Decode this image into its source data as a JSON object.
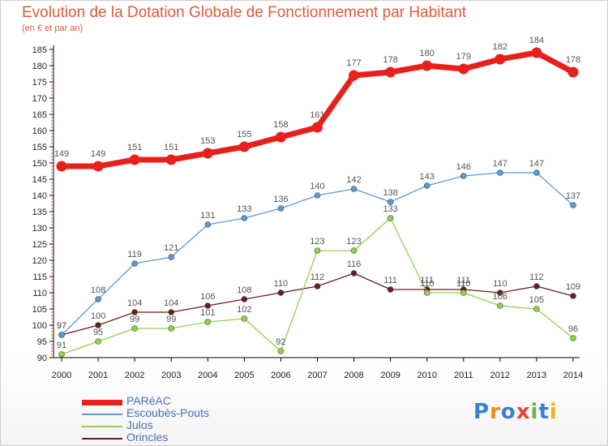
{
  "header": {
    "title": "Evolution de la Dotation Globale de Fonctionnement par Habitant",
    "subtitle": "(en € et par an)"
  },
  "logo": {
    "text": "Proxiti",
    "letters": [
      "P",
      "r",
      "o",
      "x",
      "i",
      "t",
      "i"
    ],
    "colors": [
      "#3a7fd0",
      "#f08a1c",
      "#3a7fd0",
      "#e8423a",
      "#6ab43e",
      "#3a7fd0",
      "#f0b41c"
    ]
  },
  "chart_data": {
    "type": "line",
    "title": "Evolution de la Dotation Globale de Fonctionnement par Habitant",
    "subtitle": "(en € et par an)",
    "x": [
      "2000",
      "2001",
      "2002",
      "2003",
      "2004",
      "2005",
      "2006",
      "2007",
      "2008",
      "2009",
      "2010",
      "2011",
      "2012",
      "2013",
      "2014"
    ],
    "ylim": [
      90,
      185
    ],
    "yticks": [
      90,
      95,
      100,
      105,
      110,
      115,
      120,
      125,
      130,
      135,
      140,
      145,
      150,
      155,
      160,
      165,
      170,
      175,
      180,
      185
    ],
    "grid": false,
    "legend": "bottom-left",
    "series": [
      {
        "name": "PARéAC",
        "color": "#e8201c",
        "values": [
          149,
          149,
          151,
          151,
          153,
          155,
          158,
          161,
          177,
          178,
          180,
          179,
          182,
          184,
          178
        ],
        "labels": [
          "149",
          "149",
          "151",
          "151",
          "153",
          "155",
          "158",
          "161",
          "177",
          "178",
          "180",
          "179",
          "182",
          "184",
          "178"
        ]
      },
      {
        "name": "Escoubès-Pouts",
        "color": "#5b9bd5",
        "values": [
          97,
          108,
          119,
          121,
          131,
          133,
          136,
          140,
          142,
          138,
          143,
          146,
          147,
          147,
          137
        ],
        "labels": [
          "97",
          "108",
          "119",
          "121",
          "131",
          "133",
          "136",
          "140",
          "142",
          "138",
          "143",
          "146",
          "147",
          "147",
          "137"
        ]
      },
      {
        "name": "Julos",
        "color": "#8fd44a",
        "values": [
          91,
          95,
          99,
          99,
          101,
          102,
          92,
          123,
          123,
          133,
          110,
          110,
          106,
          105,
          96
        ],
        "labels": [
          "91",
          "95",
          "99",
          "99",
          "101",
          "102",
          "92",
          "123",
          "123",
          "133",
          "110",
          "110",
          "106",
          "105",
          "96"
        ]
      },
      {
        "name": "Orincles",
        "color": "#6a1f1f",
        "values": [
          97,
          100,
          104,
          104,
          106,
          108,
          110,
          112,
          116,
          111,
          111,
          111,
          110,
          112,
          109
        ],
        "labels": [
          "97",
          "100",
          "104",
          "104",
          "106",
          "108",
          "110",
          "112",
          "116",
          "111",
          "111",
          "111",
          "110",
          "112",
          "109"
        ]
      }
    ]
  }
}
